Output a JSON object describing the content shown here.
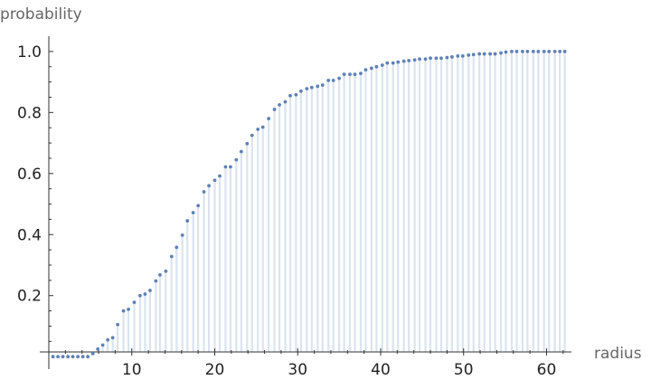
{
  "chart_data": {
    "type": "scatter",
    "style": "discrete plot with vertical filling stems from each point to the x-axis",
    "xlabel": "radius",
    "ylabel": "probability",
    "xlim": [
      0,
      63
    ],
    "ylim": [
      -0.035,
      1.05
    ],
    "x_ticks": [
      10,
      20,
      30,
      40,
      50,
      60
    ],
    "y_ticks": [
      0.2,
      0.4,
      0.6,
      0.8,
      1.0
    ],
    "y_tick_labels": [
      "0.2",
      "0.4",
      "0.6",
      "0.8",
      "1.0"
    ],
    "grid": false,
    "colors": {
      "point": "#5e81b5",
      "stem": "#dbe4ef"
    },
    "series": [
      {
        "x": [
          0.5,
          1.1,
          1.7,
          2.3,
          2.9,
          3.5,
          4.1,
          4.7,
          5.3,
          5.9,
          6.5,
          7.1,
          7.7,
          8.3,
          9.0,
          9.6,
          10.3,
          11.0,
          11.6,
          12.2,
          12.9,
          13.4,
          14.1,
          14.8,
          15.4,
          16.1,
          16.7,
          17.4,
          18.0,
          18.7,
          19.3,
          20.0,
          20.6,
          21.3,
          21.9,
          22.6,
          23.2,
          23.9,
          24.5,
          25.2,
          25.8,
          26.5,
          27.2,
          27.8,
          28.5,
          29.1,
          29.8,
          30.4,
          31.1,
          31.7,
          32.4,
          33.0,
          33.7,
          34.3,
          35.0,
          35.6,
          36.3,
          36.9,
          37.6,
          38.2,
          38.9,
          39.5,
          40.2,
          40.8,
          41.5,
          42.1,
          42.8,
          43.4,
          44.1,
          44.7,
          45.4,
          46.0,
          46.7,
          47.3,
          48.0,
          48.6,
          49.3,
          49.9,
          50.6,
          51.2,
          51.9,
          52.5,
          53.2,
          53.8,
          54.5,
          55.1,
          55.8,
          56.4,
          57.1,
          57.7,
          58.4,
          59.0,
          59.7,
          60.3,
          61.0,
          61.6,
          62.2
        ],
        "y": [
          0.0,
          0.0,
          0.0,
          0.0,
          0.0,
          0.0,
          0.0,
          0.0,
          0.01,
          0.025,
          0.038,
          0.055,
          0.062,
          0.105,
          0.15,
          0.155,
          0.178,
          0.2,
          0.205,
          0.217,
          0.248,
          0.268,
          0.28,
          0.328,
          0.358,
          0.398,
          0.445,
          0.472,
          0.495,
          0.54,
          0.56,
          0.578,
          0.592,
          0.622,
          0.622,
          0.645,
          0.672,
          0.698,
          0.725,
          0.745,
          0.752,
          0.78,
          0.81,
          0.825,
          0.835,
          0.855,
          0.858,
          0.87,
          0.878,
          0.882,
          0.886,
          0.89,
          0.905,
          0.905,
          0.912,
          0.925,
          0.925,
          0.925,
          0.928,
          0.94,
          0.945,
          0.95,
          0.955,
          0.962,
          0.962,
          0.965,
          0.968,
          0.97,
          0.972,
          0.975,
          0.975,
          0.978,
          0.978,
          0.978,
          0.98,
          0.982,
          0.985,
          0.985,
          0.988,
          0.99,
          0.992,
          0.992,
          0.992,
          0.992,
          0.995,
          0.998,
          1.0,
          1.0,
          1.0,
          1.0,
          1.0,
          1.0,
          1.0,
          1.0,
          1.0,
          1.0,
          1.0
        ]
      }
    ]
  }
}
